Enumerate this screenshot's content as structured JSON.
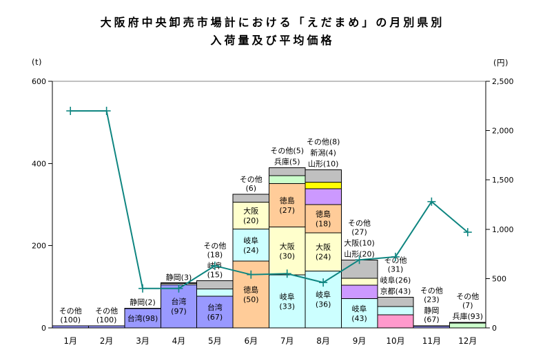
{
  "chart_data": {
    "type": "stacked-bar+line",
    "title_line1": "大阪府中央卸売市場計における「えだまめ」の月別県別",
    "title_line2": "入荷量及び平均価格",
    "categories": [
      "1月",
      "2月",
      "3月",
      "4月",
      "5月",
      "6月",
      "7月",
      "8月",
      "9月",
      "10月",
      "11月",
      "12月"
    ],
    "bar_axis": {
      "unit": "(t)",
      "ylim": [
        0,
        600
      ],
      "tick_values": [
        0,
        200,
        400,
        600
      ],
      "tick_labels": [
        "0",
        "200",
        "400",
        "600"
      ]
    },
    "price_axis": {
      "unit": "(円)",
      "ylim": [
        0,
        2500
      ],
      "tick_values": [
        0,
        500,
        1000,
        1500,
        2000,
        2500
      ],
      "tick_labels": [
        "0",
        "500",
        "1,000",
        "1,500",
        "2,000",
        "2,500"
      ]
    },
    "palette_note": {
      "台湾": "#9999ff",
      "静岡": "#ffffff",
      "徳島": "#ffcc99",
      "岐阜": "#ccffff",
      "大阪": "#ffffcc",
      "その他": "#c0c0c0",
      "兵庫": "#ccffcc",
      "山形": "#cc99ff",
      "新潟": "#ffff00",
      "京都": "#ff99cc"
    },
    "bars": [
      {
        "month": "1月",
        "total_t": 5,
        "segments": [
          {
            "name": "その他",
            "pct": 100,
            "color": "#9999ff",
            "label_lines": null
          }
        ],
        "above_labels": [
          [
            "その他",
            "(100)"
          ]
        ]
      },
      {
        "month": "2月",
        "total_t": 5,
        "segments": [
          {
            "name": "その他",
            "pct": 100,
            "color": "#9999ff",
            "label_lines": null
          }
        ],
        "above_labels": [
          [
            "その他",
            "(100)"
          ]
        ]
      },
      {
        "month": "3月",
        "total_t": 48,
        "segments": [
          {
            "name": "台湾",
            "pct": 98,
            "color": "#9999ff",
            "label_lines": [
              "台湾(98)"
            ]
          },
          {
            "name": "静岡",
            "pct": 2,
            "color": "#ffffff",
            "label_lines": null
          }
        ],
        "above_labels": [
          [
            "静岡(2)"
          ]
        ]
      },
      {
        "month": "4月",
        "total_t": 108,
        "segments": [
          {
            "name": "台湾",
            "pct": 97,
            "color": "#9999ff",
            "label_lines": [
              "台湾",
              "(97)"
            ]
          },
          {
            "name": "静岡",
            "pct": 3,
            "color": "#ffffff",
            "label_lines": null
          },
          {
            "name": "",
            "pct": 1.5,
            "color": "#ffcc99",
            "label_lines": null
          }
        ],
        "above_labels": [
          [
            "静岡(3)"
          ]
        ]
      },
      {
        "month": "5月",
        "total_t": 115,
        "segments": [
          {
            "name": "台湾",
            "pct": 67,
            "color": "#9999ff",
            "label_lines": [
              "台湾",
              "(67)"
            ]
          },
          {
            "name": "岐阜",
            "pct": 15,
            "color": "#ccffff",
            "label_lines": null
          },
          {
            "name": "その他",
            "pct": 18,
            "color": "#c0c0c0",
            "label_lines": null
          }
        ],
        "above_labels": [
          [
            "その他",
            "(18)"
          ],
          [
            "岐阜",
            "(15)"
          ]
        ]
      },
      {
        "month": "6月",
        "total_t": 325,
        "segments": [
          {
            "name": "徳島",
            "pct": 50,
            "color": "#ffcc99",
            "label_lines": [
              "徳島",
              "(50)"
            ]
          },
          {
            "name": "岐阜",
            "pct": 24,
            "color": "#ccffff",
            "label_lines": [
              "岐阜",
              "(24)"
            ]
          },
          {
            "name": "大阪",
            "pct": 20,
            "color": "#ffffcc",
            "label_lines": [
              "大阪",
              "(20)"
            ]
          },
          {
            "name": "その他",
            "pct": 6,
            "color": "#c0c0c0",
            "label_lines": null
          }
        ],
        "above_labels": [
          [
            "その他",
            "(6)"
          ]
        ]
      },
      {
        "month": "7月",
        "total_t": 390,
        "segments": [
          {
            "name": "岐阜",
            "pct": 33,
            "color": "#ccffff",
            "label_lines": [
              "岐阜",
              "(33)"
            ]
          },
          {
            "name": "大阪",
            "pct": 30,
            "color": "#ffffcc",
            "label_lines": [
              "大阪",
              "(30)"
            ]
          },
          {
            "name": "徳島",
            "pct": 27,
            "color": "#ffcc99",
            "label_lines": [
              "徳島",
              "(27)"
            ]
          },
          {
            "name": "兵庫",
            "pct": 5,
            "color": "#ccffcc",
            "label_lines": null
          },
          {
            "name": "その他",
            "pct": 5,
            "color": "#c0c0c0",
            "label_lines": null
          }
        ],
        "above_labels": [
          [
            "その他(5)"
          ],
          [
            "兵庫(5)"
          ]
        ]
      },
      {
        "month": "8月",
        "total_t": 385,
        "segments": [
          {
            "name": "岐阜",
            "pct": 36,
            "color": "#ccffff",
            "label_lines": [
              "岐阜",
              "(36)"
            ]
          },
          {
            "name": "大阪",
            "pct": 24,
            "color": "#ffffcc",
            "label_lines": [
              "大阪",
              "(24)"
            ]
          },
          {
            "name": "徳島",
            "pct": 18,
            "color": "#ffcc99",
            "label_lines": [
              "徳島",
              "(18)"
            ]
          },
          {
            "name": "山形",
            "pct": 10,
            "color": "#cc99ff",
            "label_lines": null
          },
          {
            "name": "新潟",
            "pct": 4,
            "color": "#ffff00",
            "label_lines": null
          },
          {
            "name": "その他",
            "pct": 8,
            "color": "#c0c0c0",
            "label_lines": null
          }
        ],
        "above_labels": [
          [
            "その他(8)"
          ],
          [
            "新潟(4)"
          ],
          [
            "山形(10)"
          ]
        ]
      },
      {
        "month": "9月",
        "total_t": 165,
        "segments": [
          {
            "name": "岐阜",
            "pct": 43,
            "color": "#ccffff",
            "label_lines": [
              "岐阜",
              "(43)"
            ]
          },
          {
            "name": "山形",
            "pct": 20,
            "color": "#cc99ff",
            "label_lines": null
          },
          {
            "name": "大阪",
            "pct": 10,
            "color": "#ffffcc",
            "label_lines": null
          },
          {
            "name": "その他",
            "pct": 27,
            "color": "#c0c0c0",
            "label_lines": null
          }
        ],
        "above_labels": [
          [
            "その他",
            "(27)"
          ],
          [
            "大阪(10)"
          ],
          [
            "山形(20)"
          ]
        ]
      },
      {
        "month": "10月",
        "total_t": 75,
        "segments": [
          {
            "name": "京都",
            "pct": 43,
            "color": "#ff99cc",
            "label_lines": null
          },
          {
            "name": "岐阜",
            "pct": 26,
            "color": "#ccffff",
            "label_lines": null
          },
          {
            "name": "その他",
            "pct": 31,
            "color": "#c0c0c0",
            "label_lines": null
          }
        ],
        "above_labels": [
          [
            "その他",
            "(31)"
          ],
          [
            "岐阜(26)"
          ],
          [
            "京都(43)"
          ]
        ]
      },
      {
        "month": "11月",
        "total_t": 6,
        "segments": [
          {
            "name": "静岡",
            "pct": 67,
            "color": "#9999ff",
            "label_lines": null
          },
          {
            "name": "その他",
            "pct": 23,
            "color": "#c0c0c0",
            "label_lines": null
          }
        ],
        "above_labels": [
          [
            "その他",
            "(23)"
          ],
          [
            "静岡",
            "(67)"
          ]
        ]
      },
      {
        "month": "12月",
        "total_t": 13,
        "segments": [
          {
            "name": "兵庫",
            "pct": 93,
            "color": "#ccffcc",
            "label_lines": null
          },
          {
            "name": "その他",
            "pct": 7,
            "color": "#c0c0c0",
            "label_lines": null
          }
        ],
        "above_labels": [
          [
            "その他",
            "(7)"
          ],
          [
            "兵庫(93)"
          ]
        ]
      }
    ],
    "price_line": {
      "name": "平均価格",
      "color": "#0e8580",
      "values": [
        2200,
        2200,
        400,
        400,
        630,
        540,
        550,
        460,
        690,
        720,
        1280,
        970
      ]
    }
  }
}
